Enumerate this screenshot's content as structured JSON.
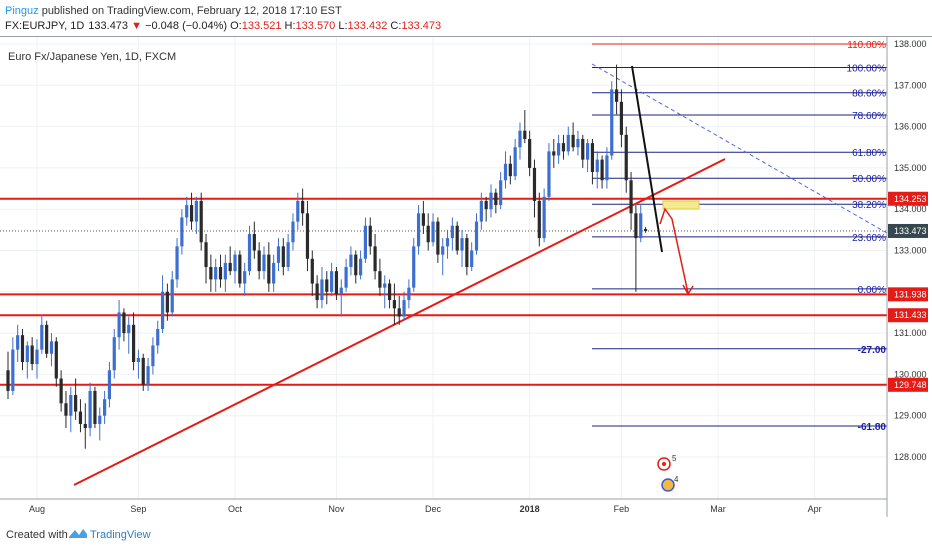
{
  "header": {
    "username": "Pinguz",
    "published_text": " published on TradingView.com, February 12, 2018 17:10 EST",
    "symbol": "FX:EURJPY, 1D",
    "last": "133.473",
    "change_arrow": "▼",
    "change": "−0.048 (−0.04%)",
    "o_label": "O:",
    "o_value": "133.521",
    "h_label": "H:",
    "h_value": "133.570",
    "l_label": "L:",
    "l_value": "133.432",
    "c_label": "C:",
    "c_value": "133.473"
  },
  "legend": "Euro Fx/Japanese Yen, 1D, FXCM",
  "footer": {
    "created": "Created with",
    "brand": "TradingView"
  },
  "colors": {
    "up": "#3d6fd1",
    "down": "#2a2a2a",
    "sr_line": "#e41b17",
    "fib_line": "#1a237e",
    "fib_text": "#1a1aa6",
    "price_tag": "#37474f"
  },
  "chart_data": {
    "type": "candlestick",
    "title": "Euro Fx/Japanese Yen, 1D, FXCM",
    "y_axis": {
      "position": "right",
      "ticks": [
        "128.000",
        "129.000",
        "130.000",
        "131.000",
        "132.000",
        "133.000",
        "134.000",
        "135.000",
        "136.000",
        "137.000",
        "138.000"
      ],
      "range": [
        127.2,
        138.2
      ]
    },
    "x_axis": {
      "ticks": [
        "Aug",
        "Sep",
        "Oct",
        "Nov",
        "Dec",
        "2018",
        "Feb",
        "Mar",
        "Apr"
      ]
    },
    "last_price": 133.473,
    "price_labels": [
      {
        "text": "134.253",
        "value": 134.253,
        "style": "red"
      },
      {
        "text": "133.473",
        "value": 133.473,
        "style": "dark"
      },
      {
        "text": "131.938",
        "value": 131.938,
        "style": "red"
      },
      {
        "text": "131.433",
        "value": 131.433,
        "style": "red"
      },
      {
        "text": "129.748",
        "value": 129.748,
        "style": "red"
      }
    ],
    "horizontal_levels": [
      134.253,
      131.938,
      131.433,
      129.748
    ],
    "fib_levels": [
      {
        "label": "110.00%",
        "value": 138.0
      },
      {
        "label": "100.00%",
        "value": 137.43
      },
      {
        "label": "88.60%",
        "value": 136.82
      },
      {
        "label": "78.60%",
        "value": 136.28
      },
      {
        "label": "61.80%",
        "value": 135.38
      },
      {
        "label": "50.00%",
        "value": 134.75
      },
      {
        "label": "38.20%",
        "value": 134.12
      },
      {
        "label": "23.60%",
        "value": 133.33
      },
      {
        "label": "0.00%",
        "value": 132.07
      },
      {
        "label": "-27.00",
        "value": 130.62
      },
      {
        "label": "-61.80",
        "value": 128.75
      }
    ],
    "event_badges": [
      "5",
      "4"
    ],
    "candles": [
      {
        "d": 0,
        "o": 130.1,
        "h": 130.55,
        "l": 129.4,
        "c": 129.6
      },
      {
        "d": 1,
        "o": 129.6,
        "h": 130.9,
        "l": 129.5,
        "c": 130.6
      },
      {
        "d": 2,
        "o": 130.6,
        "h": 131.2,
        "l": 130.3,
        "c": 130.95
      },
      {
        "d": 3,
        "o": 130.95,
        "h": 131.1,
        "l": 130.1,
        "c": 130.3
      },
      {
        "d": 4,
        "o": 130.3,
        "h": 130.8,
        "l": 129.9,
        "c": 130.7
      },
      {
        "d": 5,
        "o": 130.7,
        "h": 130.9,
        "l": 130.1,
        "c": 130.25
      },
      {
        "d": 6,
        "o": 130.25,
        "h": 130.85,
        "l": 129.9,
        "c": 130.6
      },
      {
        "d": 7,
        "o": 130.6,
        "h": 131.45,
        "l": 130.5,
        "c": 131.2
      },
      {
        "d": 8,
        "o": 131.2,
        "h": 131.3,
        "l": 130.4,
        "c": 130.5
      },
      {
        "d": 9,
        "o": 130.5,
        "h": 131.0,
        "l": 130.2,
        "c": 130.8
      },
      {
        "d": 10,
        "o": 130.8,
        "h": 130.9,
        "l": 129.7,
        "c": 129.9
      },
      {
        "d": 11,
        "o": 129.9,
        "h": 130.1,
        "l": 129.1,
        "c": 129.3
      },
      {
        "d": 12,
        "o": 129.3,
        "h": 129.6,
        "l": 128.7,
        "c": 129.0
      },
      {
        "d": 13,
        "o": 129.0,
        "h": 129.7,
        "l": 128.6,
        "c": 129.5
      },
      {
        "d": 14,
        "o": 129.5,
        "h": 129.9,
        "l": 128.9,
        "c": 129.1
      },
      {
        "d": 15,
        "o": 129.1,
        "h": 129.4,
        "l": 128.6,
        "c": 128.8
      },
      {
        "d": 16,
        "o": 128.8,
        "h": 129.3,
        "l": 128.2,
        "c": 128.7
      },
      {
        "d": 17,
        "o": 128.7,
        "h": 129.8,
        "l": 128.5,
        "c": 129.6
      },
      {
        "d": 18,
        "o": 129.6,
        "h": 129.7,
        "l": 128.7,
        "c": 128.8
      },
      {
        "d": 19,
        "o": 128.8,
        "h": 129.2,
        "l": 128.4,
        "c": 129.0
      },
      {
        "d": 20,
        "o": 129.0,
        "h": 129.6,
        "l": 128.8,
        "c": 129.4
      },
      {
        "d": 21,
        "o": 129.4,
        "h": 130.3,
        "l": 129.2,
        "c": 130.1
      },
      {
        "d": 22,
        "o": 130.1,
        "h": 131.1,
        "l": 129.9,
        "c": 130.9
      },
      {
        "d": 23,
        "o": 130.9,
        "h": 131.8,
        "l": 130.6,
        "c": 131.5
      },
      {
        "d": 24,
        "o": 131.5,
        "h": 131.6,
        "l": 130.8,
        "c": 131.0
      },
      {
        "d": 25,
        "o": 131.0,
        "h": 131.4,
        "l": 130.5,
        "c": 131.2
      },
      {
        "d": 26,
        "o": 131.2,
        "h": 131.5,
        "l": 130.1,
        "c": 130.3
      },
      {
        "d": 27,
        "o": 130.3,
        "h": 130.6,
        "l": 129.9,
        "c": 130.4
      },
      {
        "d": 28,
        "o": 130.4,
        "h": 130.5,
        "l": 129.6,
        "c": 129.75
      },
      {
        "d": 29,
        "o": 129.75,
        "h": 130.4,
        "l": 129.6,
        "c": 130.2
      },
      {
        "d": 30,
        "o": 130.2,
        "h": 130.9,
        "l": 130.0,
        "c": 130.7
      },
      {
        "d": 31,
        "o": 130.7,
        "h": 131.3,
        "l": 130.5,
        "c": 131.1
      },
      {
        "d": 32,
        "o": 131.1,
        "h": 132.4,
        "l": 131.0,
        "c": 132.0
      },
      {
        "d": 33,
        "o": 132.0,
        "h": 132.2,
        "l": 131.3,
        "c": 131.5
      },
      {
        "d": 34,
        "o": 131.5,
        "h": 132.5,
        "l": 131.4,
        "c": 132.3
      },
      {
        "d": 35,
        "o": 132.3,
        "h": 133.3,
        "l": 132.1,
        "c": 133.1
      },
      {
        "d": 36,
        "o": 133.1,
        "h": 134.0,
        "l": 132.9,
        "c": 133.8
      },
      {
        "d": 37,
        "o": 133.8,
        "h": 134.3,
        "l": 133.6,
        "c": 134.1
      },
      {
        "d": 38,
        "o": 134.1,
        "h": 134.4,
        "l": 133.5,
        "c": 133.7
      },
      {
        "d": 39,
        "o": 133.7,
        "h": 134.3,
        "l": 133.4,
        "c": 134.2
      },
      {
        "d": 40,
        "o": 134.2,
        "h": 134.4,
        "l": 133.0,
        "c": 133.2
      },
      {
        "d": 41,
        "o": 133.2,
        "h": 133.4,
        "l": 132.2,
        "c": 132.6
      },
      {
        "d": 42,
        "o": 132.6,
        "h": 132.9,
        "l": 132.0,
        "c": 132.3
      },
      {
        "d": 43,
        "o": 132.3,
        "h": 132.8,
        "l": 132.0,
        "c": 132.6
      },
      {
        "d": 44,
        "o": 132.6,
        "h": 132.9,
        "l": 132.1,
        "c": 132.3
      },
      {
        "d": 45,
        "o": 132.3,
        "h": 132.9,
        "l": 132.0,
        "c": 132.7
      },
      {
        "d": 46,
        "o": 132.7,
        "h": 133.1,
        "l": 132.4,
        "c": 132.5
      },
      {
        "d": 47,
        "o": 132.5,
        "h": 133.0,
        "l": 132.2,
        "c": 132.9
      },
      {
        "d": 48,
        "o": 132.9,
        "h": 133.0,
        "l": 132.1,
        "c": 132.2
      },
      {
        "d": 49,
        "o": 132.2,
        "h": 132.7,
        "l": 131.9,
        "c": 132.5
      },
      {
        "d": 50,
        "o": 132.5,
        "h": 133.6,
        "l": 132.4,
        "c": 133.4
      },
      {
        "d": 51,
        "o": 133.4,
        "h": 133.7,
        "l": 132.8,
        "c": 133.0
      },
      {
        "d": 52,
        "o": 133.0,
        "h": 133.2,
        "l": 132.3,
        "c": 132.5
      },
      {
        "d": 53,
        "o": 132.5,
        "h": 133.1,
        "l": 132.3,
        "c": 132.9
      },
      {
        "d": 54,
        "o": 132.9,
        "h": 133.2,
        "l": 132.0,
        "c": 132.2
      },
      {
        "d": 55,
        "o": 132.2,
        "h": 132.9,
        "l": 132.0,
        "c": 132.7
      },
      {
        "d": 56,
        "o": 132.7,
        "h": 133.3,
        "l": 132.5,
        "c": 133.1
      },
      {
        "d": 57,
        "o": 133.1,
        "h": 133.3,
        "l": 132.4,
        "c": 132.6
      },
      {
        "d": 58,
        "o": 132.6,
        "h": 133.4,
        "l": 132.5,
        "c": 133.2
      },
      {
        "d": 59,
        "o": 133.2,
        "h": 133.9,
        "l": 133.0,
        "c": 133.7
      },
      {
        "d": 60,
        "o": 133.7,
        "h": 134.4,
        "l": 133.5,
        "c": 134.2
      },
      {
        "d": 61,
        "o": 134.2,
        "h": 134.5,
        "l": 133.6,
        "c": 133.9
      },
      {
        "d": 62,
        "o": 133.9,
        "h": 134.2,
        "l": 132.5,
        "c": 132.8
      },
      {
        "d": 63,
        "o": 132.8,
        "h": 133.0,
        "l": 131.9,
        "c": 132.2
      },
      {
        "d": 64,
        "o": 132.2,
        "h": 132.4,
        "l": 131.6,
        "c": 131.8
      },
      {
        "d": 65,
        "o": 131.8,
        "h": 132.6,
        "l": 131.6,
        "c": 132.3
      },
      {
        "d": 66,
        "o": 132.3,
        "h": 132.5,
        "l": 131.7,
        "c": 132.0
      },
      {
        "d": 67,
        "o": 132.0,
        "h": 132.7,
        "l": 131.9,
        "c": 132.5
      },
      {
        "d": 68,
        "o": 132.5,
        "h": 132.6,
        "l": 131.8,
        "c": 131.95
      },
      {
        "d": 69,
        "o": 131.95,
        "h": 132.3,
        "l": 131.4,
        "c": 132.1
      },
      {
        "d": 70,
        "o": 132.1,
        "h": 132.8,
        "l": 132.0,
        "c": 132.6
      },
      {
        "d": 71,
        "o": 132.6,
        "h": 133.1,
        "l": 132.4,
        "c": 132.9
      },
      {
        "d": 72,
        "o": 132.9,
        "h": 133.0,
        "l": 132.2,
        "c": 132.4
      },
      {
        "d": 73,
        "o": 132.4,
        "h": 133.0,
        "l": 132.3,
        "c": 132.8
      },
      {
        "d": 74,
        "o": 132.8,
        "h": 133.8,
        "l": 132.7,
        "c": 133.6
      },
      {
        "d": 75,
        "o": 133.6,
        "h": 133.8,
        "l": 132.9,
        "c": 133.1
      },
      {
        "d": 76,
        "o": 133.1,
        "h": 133.4,
        "l": 132.3,
        "c": 132.5
      },
      {
        "d": 77,
        "o": 132.5,
        "h": 132.8,
        "l": 131.9,
        "c": 132.1
      },
      {
        "d": 78,
        "o": 132.1,
        "h": 132.4,
        "l": 131.6,
        "c": 132.2
      },
      {
        "d": 79,
        "o": 132.2,
        "h": 132.3,
        "l": 131.6,
        "c": 131.8
      },
      {
        "d": 80,
        "o": 131.8,
        "h": 132.2,
        "l": 131.2,
        "c": 131.6
      },
      {
        "d": 81,
        "o": 131.6,
        "h": 131.9,
        "l": 131.2,
        "c": 131.4
      },
      {
        "d": 82,
        "o": 131.4,
        "h": 132.0,
        "l": 131.3,
        "c": 131.8
      },
      {
        "d": 83,
        "o": 131.8,
        "h": 132.3,
        "l": 131.6,
        "c": 132.1
      },
      {
        "d": 84,
        "o": 132.1,
        "h": 133.3,
        "l": 132.0,
        "c": 133.1
      },
      {
        "d": 85,
        "o": 133.1,
        "h": 134.1,
        "l": 132.9,
        "c": 133.9
      },
      {
        "d": 86,
        "o": 133.9,
        "h": 134.2,
        "l": 133.4,
        "c": 133.6
      },
      {
        "d": 87,
        "o": 133.6,
        "h": 133.9,
        "l": 133.0,
        "c": 133.2
      },
      {
        "d": 88,
        "o": 133.2,
        "h": 133.9,
        "l": 133.1,
        "c": 133.7
      },
      {
        "d": 89,
        "o": 133.7,
        "h": 133.8,
        "l": 132.7,
        "c": 132.9
      },
      {
        "d": 90,
        "o": 132.9,
        "h": 133.3,
        "l": 132.4,
        "c": 133.1
      },
      {
        "d": 91,
        "o": 133.1,
        "h": 133.5,
        "l": 132.8,
        "c": 133.3
      },
      {
        "d": 92,
        "o": 133.3,
        "h": 133.8,
        "l": 133.0,
        "c": 133.6
      },
      {
        "d": 93,
        "o": 133.6,
        "h": 133.7,
        "l": 132.9,
        "c": 133.0
      },
      {
        "d": 94,
        "o": 133.0,
        "h": 133.5,
        "l": 132.6,
        "c": 133.3
      },
      {
        "d": 95,
        "o": 133.3,
        "h": 133.4,
        "l": 132.4,
        "c": 132.6
      },
      {
        "d": 96,
        "o": 132.6,
        "h": 133.2,
        "l": 132.5,
        "c": 133.0
      },
      {
        "d": 97,
        "o": 133.0,
        "h": 133.9,
        "l": 132.9,
        "c": 133.7
      },
      {
        "d": 98,
        "o": 133.7,
        "h": 134.4,
        "l": 133.5,
        "c": 134.2
      },
      {
        "d": 99,
        "o": 134.2,
        "h": 134.3,
        "l": 133.7,
        "c": 134.0
      },
      {
        "d": 100,
        "o": 134.0,
        "h": 134.6,
        "l": 133.8,
        "c": 134.4
      },
      {
        "d": 101,
        "o": 134.4,
        "h": 134.5,
        "l": 133.9,
        "c": 134.1
      },
      {
        "d": 102,
        "o": 134.1,
        "h": 134.9,
        "l": 134.0,
        "c": 134.7
      },
      {
        "d": 103,
        "o": 134.7,
        "h": 135.4,
        "l": 134.5,
        "c": 135.1
      },
      {
        "d": 104,
        "o": 135.1,
        "h": 135.3,
        "l": 134.6,
        "c": 134.8
      },
      {
        "d": 105,
        "o": 134.8,
        "h": 135.7,
        "l": 134.7,
        "c": 135.5
      },
      {
        "d": 106,
        "o": 135.5,
        "h": 136.1,
        "l": 135.2,
        "c": 135.9
      },
      {
        "d": 107,
        "o": 135.9,
        "h": 136.4,
        "l": 135.6,
        "c": 135.7
      },
      {
        "d": 108,
        "o": 135.7,
        "h": 135.9,
        "l": 134.8,
        "c": 135.0
      },
      {
        "d": 109,
        "o": 135.0,
        "h": 135.2,
        "l": 133.8,
        "c": 134.2
      },
      {
        "d": 110,
        "o": 134.2,
        "h": 134.4,
        "l": 133.1,
        "c": 133.3
      },
      {
        "d": 111,
        "o": 133.3,
        "h": 134.5,
        "l": 133.2,
        "c": 134.3
      },
      {
        "d": 112,
        "o": 134.3,
        "h": 135.6,
        "l": 134.2,
        "c": 135.4
      },
      {
        "d": 113,
        "o": 135.4,
        "h": 135.7,
        "l": 135.0,
        "c": 135.3
      },
      {
        "d": 114,
        "o": 135.3,
        "h": 135.8,
        "l": 135.1,
        "c": 135.6
      },
      {
        "d": 115,
        "o": 135.6,
        "h": 135.8,
        "l": 135.2,
        "c": 135.4
      },
      {
        "d": 116,
        "o": 135.4,
        "h": 136.0,
        "l": 135.3,
        "c": 135.8
      },
      {
        "d": 117,
        "o": 135.8,
        "h": 136.1,
        "l": 135.4,
        "c": 135.5
      },
      {
        "d": 118,
        "o": 135.5,
        "h": 135.9,
        "l": 135.3,
        "c": 135.7
      },
      {
        "d": 119,
        "o": 135.7,
        "h": 135.8,
        "l": 135.0,
        "c": 135.2
      },
      {
        "d": 120,
        "o": 135.2,
        "h": 135.7,
        "l": 134.9,
        "c": 135.6
      },
      {
        "d": 121,
        "o": 135.6,
        "h": 135.7,
        "l": 134.6,
        "c": 134.9
      },
      {
        "d": 122,
        "o": 134.9,
        "h": 135.4,
        "l": 134.5,
        "c": 135.2
      },
      {
        "d": 123,
        "o": 135.2,
        "h": 135.3,
        "l": 134.5,
        "c": 134.7
      },
      {
        "d": 124,
        "o": 134.7,
        "h": 135.5,
        "l": 134.5,
        "c": 135.3
      },
      {
        "d": 125,
        "o": 135.3,
        "h": 137.1,
        "l": 135.2,
        "c": 136.9
      },
      {
        "d": 126,
        "o": 136.9,
        "h": 137.5,
        "l": 136.3,
        "c": 136.6
      },
      {
        "d": 127,
        "o": 136.6,
        "h": 136.9,
        "l": 135.5,
        "c": 135.8
      },
      {
        "d": 128,
        "o": 135.8,
        "h": 136.0,
        "l": 134.4,
        "c": 134.7
      },
      {
        "d": 129,
        "o": 134.7,
        "h": 134.9,
        "l": 133.5,
        "c": 133.9
      },
      {
        "d": 130,
        "o": 133.9,
        "h": 134.1,
        "l": 132.0,
        "c": 133.3
      },
      {
        "d": 131,
        "o": 133.3,
        "h": 134.1,
        "l": 133.2,
        "c": 133.9
      },
      {
        "d": 132,
        "o": 133.52,
        "h": 133.57,
        "l": 133.43,
        "c": 133.47
      }
    ]
  }
}
